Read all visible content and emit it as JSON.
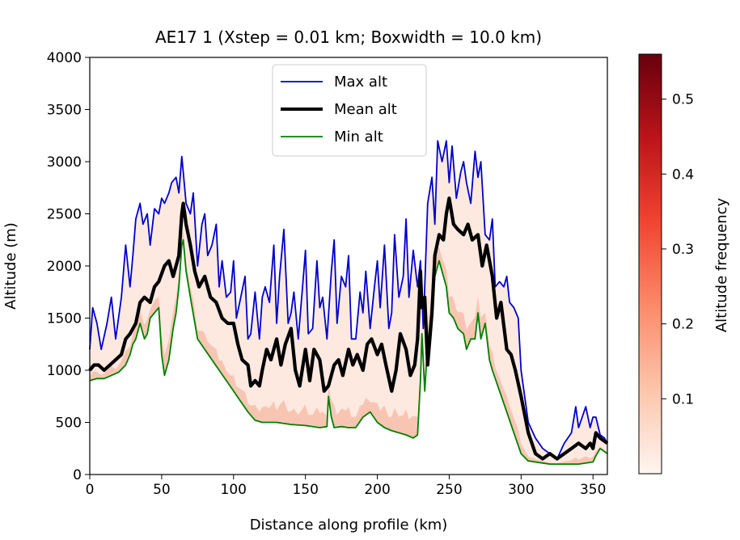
{
  "chart_data": {
    "type": "line",
    "title": "AE17 1 (Xstep = 0.01 km; Boxwidth = 10.0 km)",
    "xlabel": "Distance along profile (km)",
    "ylabel": "Altitude (m)",
    "xlim": [
      0,
      360
    ],
    "ylim": [
      0,
      4000
    ],
    "xticks": [
      "0",
      "50",
      "100",
      "150",
      "200",
      "250",
      "300",
      "350"
    ],
    "yticks": [
      "0",
      "500",
      "1000",
      "1500",
      "2000",
      "2500",
      "3000",
      "3500",
      "4000"
    ],
    "grid": false,
    "legend": {
      "placement": "top-center"
    },
    "colorbar": {
      "label": "Altitude frequency",
      "range": [
        0.0,
        0.56
      ],
      "ticks": [
        "0.1",
        "0.2",
        "0.3",
        "0.4",
        "0.5"
      ],
      "colormap": [
        "#fff5f0",
        "#fcbba1",
        "#fb6a4a",
        "#cb181d",
        "#67000d"
      ]
    },
    "series": [
      {
        "name": "Max alt",
        "color": "#0000cc",
        "x": [
          0,
          2,
          5,
          8,
          12,
          15,
          18,
          22,
          25,
          28,
          30,
          32,
          35,
          37,
          40,
          42,
          45,
          48,
          50,
          52,
          55,
          57,
          60,
          62,
          64,
          65,
          67,
          70,
          72,
          75,
          78,
          80,
          82,
          85,
          88,
          90,
          92,
          95,
          98,
          100,
          102,
          105,
          108,
          110,
          112,
          115,
          118,
          120,
          122,
          125,
          128,
          130,
          132,
          135,
          138,
          140,
          142,
          145,
          148,
          150,
          152,
          155,
          158,
          160,
          162,
          165,
          168,
          170,
          172,
          175,
          178,
          180,
          182,
          185,
          188,
          190,
          192,
          195,
          198,
          200,
          202,
          205,
          208,
          210,
          212,
          215,
          218,
          220,
          222,
          225,
          228,
          230,
          232,
          235,
          238,
          240,
          242,
          245,
          248,
          250,
          252,
          255,
          258,
          260,
          262,
          265,
          268,
          270,
          272,
          275,
          278,
          280,
          282,
          285,
          288,
          290,
          292,
          295,
          298,
          300,
          305,
          310,
          315,
          320,
          325,
          330,
          335,
          338,
          340,
          345,
          348,
          350,
          352,
          355,
          358,
          360
        ],
        "y": [
          1200,
          1600,
          1450,
          1200,
          1450,
          1700,
          1300,
          1700,
          2200,
          1800,
          2100,
          2450,
          2600,
          2400,
          2500,
          2200,
          2550,
          2500,
          2650,
          2600,
          2700,
          2800,
          2850,
          2700,
          3050,
          2900,
          2600,
          2500,
          2700,
          2000,
          2400,
          2500,
          2100,
          2200,
          2400,
          1800,
          2050,
          1700,
          1750,
          2050,
          1500,
          1700,
          1900,
          1300,
          1350,
          1750,
          1300,
          1700,
          1800,
          1650,
          2200,
          1450,
          1900,
          2350,
          1450,
          1550,
          1750,
          1300,
          1800,
          2150,
          1350,
          1400,
          2050,
          1600,
          1700,
          1300,
          1950,
          2250,
          1450,
          1900,
          1800,
          2100,
          1300,
          1300,
          1750,
          1550,
          1950,
          1400,
          1800,
          2050,
          1600,
          2200,
          1400,
          1550,
          2300,
          1700,
          1900,
          2450,
          1700,
          2150,
          1800,
          2050,
          1400,
          2600,
          2850,
          2400,
          3200,
          3000,
          3200,
          2800,
          3150,
          2650,
          2900,
          3000,
          2800,
          2600,
          3100,
          2850,
          3000,
          2300,
          2250,
          2450,
          1800,
          1850,
          1800,
          1900,
          1650,
          1600,
          1500,
          1000,
          500,
          350,
          250,
          200,
          150,
          300,
          400,
          650,
          450,
          650,
          450,
          550,
          550,
          380,
          350,
          300
        ]
      },
      {
        "name": "Mean alt",
        "color": "#000000",
        "x": [
          0,
          3,
          6,
          10,
          14,
          18,
          22,
          25,
          28,
          32,
          35,
          38,
          42,
          45,
          48,
          52,
          55,
          58,
          62,
          64,
          65,
          67,
          70,
          73,
          76,
          80,
          84,
          88,
          92,
          96,
          100,
          103,
          106,
          110,
          112,
          115,
          118,
          120,
          123,
          126,
          130,
          133,
          136,
          140,
          143,
          146,
          150,
          153,
          156,
          160,
          163,
          166,
          170,
          173,
          176,
          180,
          183,
          186,
          190,
          193,
          196,
          200,
          203,
          206,
          210,
          213,
          216,
          220,
          223,
          226,
          228,
          230,
          231,
          233,
          235,
          238,
          240,
          243,
          246,
          248,
          250,
          253,
          256,
          260,
          263,
          266,
          270,
          273,
          276,
          280,
          283,
          286,
          290,
          293,
          296,
          300,
          305,
          310,
          315,
          320,
          325,
          330,
          335,
          340,
          345,
          348,
          350,
          352,
          355,
          360
        ],
        "y": [
          1000,
          1050,
          1050,
          1000,
          1050,
          1100,
          1150,
          1300,
          1350,
          1450,
          1650,
          1700,
          1650,
          1800,
          1850,
          2000,
          2050,
          1900,
          2100,
          2500,
          2600,
          2400,
          2200,
          1950,
          1800,
          1900,
          1700,
          1650,
          1500,
          1450,
          1450,
          1250,
          1100,
          1050,
          850,
          900,
          850,
          1000,
          1200,
          1100,
          1300,
          1050,
          1250,
          1400,
          1000,
          850,
          1200,
          900,
          1200,
          1100,
          800,
          850,
          1050,
          1100,
          950,
          1200,
          1050,
          1150,
          1000,
          1250,
          1300,
          1150,
          1250,
          1050,
          800,
          1000,
          1350,
          1200,
          950,
          1050,
          1300,
          1950,
          1600,
          1700,
          1050,
          1550,
          2100,
          2300,
          2250,
          2500,
          2650,
          2400,
          2350,
          2300,
          2400,
          2250,
          2300,
          2000,
          2200,
          1900,
          1500,
          1650,
          1200,
          1150,
          1000,
          750,
          400,
          200,
          150,
          200,
          150,
          200,
          250,
          300,
          250,
          300,
          250,
          400,
          350,
          300
        ]
      },
      {
        "name": "Min alt",
        "color": "#008000",
        "x": [
          0,
          5,
          10,
          15,
          20,
          25,
          28,
          30,
          32,
          35,
          38,
          40,
          42,
          45,
          48,
          50,
          52,
          55,
          58,
          60,
          62,
          64,
          65,
          67,
          70,
          75,
          80,
          85,
          90,
          95,
          100,
          105,
          110,
          115,
          120,
          130,
          140,
          150,
          160,
          165,
          166,
          168,
          170,
          175,
          180,
          185,
          190,
          195,
          200,
          205,
          210,
          215,
          220,
          225,
          228,
          230,
          231,
          233,
          235,
          238,
          240,
          243,
          246,
          248,
          250,
          253,
          256,
          260,
          262,
          265,
          268,
          270,
          272,
          275,
          278,
          280,
          285,
          290,
          295,
          300,
          305,
          310,
          315,
          320,
          330,
          340,
          350,
          352,
          355,
          360
        ],
        "y": [
          900,
          920,
          920,
          950,
          980,
          1050,
          1150,
          1250,
          1300,
          1450,
          1300,
          1350,
          1500,
          1550,
          1600,
          1150,
          950,
          1100,
          1400,
          1550,
          1800,
          2200,
          2250,
          1950,
          1700,
          1300,
          1200,
          1100,
          1000,
          900,
          800,
          700,
          600,
          520,
          500,
          500,
          480,
          470,
          450,
          460,
          750,
          550,
          450,
          460,
          450,
          450,
          550,
          600,
          500,
          450,
          420,
          400,
          380,
          350,
          380,
          900,
          1350,
          800,
          1250,
          1600,
          1900,
          2050,
          1900,
          1800,
          1550,
          1500,
          1400,
          1350,
          1200,
          1300,
          1300,
          1550,
          1300,
          1450,
          1100,
          1000,
          800,
          600,
          400,
          200,
          130,
          120,
          110,
          100,
          100,
          100,
          120,
          180,
          250,
          200
        ]
      }
    ]
  }
}
